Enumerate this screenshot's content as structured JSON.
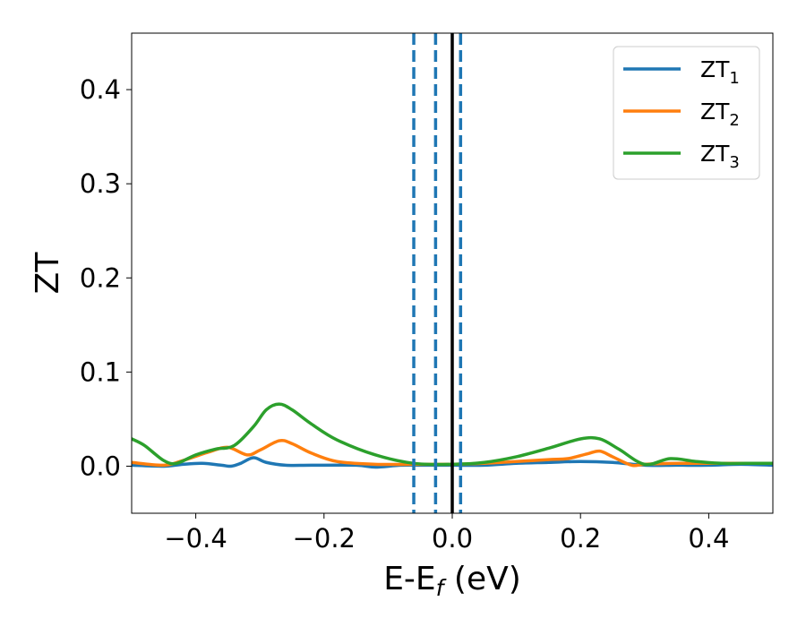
{
  "chart_data": {
    "type": "line",
    "xlabel": "E-E",
    "xlabel_sub": "f",
    "xlabel_unit": " (eV)",
    "ylabel": "ZT",
    "xlim": [
      -0.5,
      0.5
    ],
    "ylim": [
      -0.05,
      0.46
    ],
    "x_ticks": [
      -0.4,
      -0.2,
      0.0,
      0.2,
      0.4
    ],
    "x_tick_labels": [
      "−0.4",
      "−0.2",
      "0.0",
      "0.2",
      "0.4"
    ],
    "y_ticks": [
      0.0,
      0.1,
      0.2,
      0.3,
      0.4
    ],
    "y_tick_labels": [
      "0.0",
      "0.1",
      "0.2",
      "0.3",
      "0.4"
    ],
    "grid": false,
    "legend_position": "top-right",
    "vertical_lines": [
      {
        "x": -0.06,
        "style": "dashed",
        "color": "#1f77b4"
      },
      {
        "x": -0.026,
        "style": "dashed",
        "color": "#1f77b4"
      },
      {
        "x": 0.013,
        "style": "dashed",
        "color": "#1f77b4"
      },
      {
        "x": 0.0,
        "style": "solid",
        "color": "#000000"
      }
    ],
    "series": [
      {
        "name": "ZT",
        "sub": "1",
        "color": "#1f77b4",
        "x": [
          -0.5,
          -0.45,
          -0.42,
          -0.39,
          -0.36,
          -0.345,
          -0.33,
          -0.31,
          -0.29,
          -0.26,
          -0.22,
          -0.15,
          -0.12,
          -0.08,
          -0.04,
          0.0,
          0.05,
          0.1,
          0.15,
          0.2,
          0.25,
          0.3,
          0.35,
          0.4,
          0.45,
          0.5
        ],
        "values": [
          0.001,
          0.0,
          0.002,
          0.003,
          0.001,
          0.0,
          0.003,
          0.009,
          0.004,
          0.001,
          0.001,
          0.001,
          -0.001,
          0.001,
          0.001,
          0.001,
          0.001,
          0.003,
          0.004,
          0.005,
          0.004,
          0.001,
          0.001,
          0.001,
          0.002,
          0.001
        ]
      },
      {
        "name": "ZT",
        "sub": "2",
        "color": "#ff7f0e",
        "x": [
          -0.5,
          -0.45,
          -0.42,
          -0.38,
          -0.35,
          -0.32,
          -0.3,
          -0.27,
          -0.25,
          -0.22,
          -0.18,
          -0.12,
          -0.06,
          0.0,
          0.05,
          0.1,
          0.15,
          0.18,
          0.21,
          0.23,
          0.25,
          0.28,
          0.3,
          0.35,
          0.4,
          0.45,
          0.5
        ],
        "values": [
          0.004,
          0.001,
          0.006,
          0.015,
          0.02,
          0.012,
          0.017,
          0.027,
          0.024,
          0.014,
          0.005,
          0.002,
          0.002,
          0.002,
          0.003,
          0.005,
          0.007,
          0.008,
          0.013,
          0.016,
          0.01,
          0.001,
          0.002,
          0.003,
          0.003,
          0.003,
          0.003
        ]
      },
      {
        "name": "ZT",
        "sub": "3",
        "color": "#2ca02c",
        "x": [
          -0.5,
          -0.48,
          -0.45,
          -0.43,
          -0.4,
          -0.37,
          -0.34,
          -0.31,
          -0.29,
          -0.27,
          -0.25,
          -0.22,
          -0.18,
          -0.12,
          -0.06,
          0.0,
          0.05,
          0.1,
          0.15,
          0.2,
          0.23,
          0.26,
          0.3,
          0.34,
          0.38,
          0.42,
          0.46,
          0.5
        ],
        "values": [
          0.029,
          0.022,
          0.006,
          0.003,
          0.012,
          0.018,
          0.022,
          0.042,
          0.06,
          0.066,
          0.06,
          0.045,
          0.028,
          0.012,
          0.003,
          0.002,
          0.004,
          0.01,
          0.019,
          0.029,
          0.029,
          0.018,
          0.002,
          0.008,
          0.005,
          0.003,
          0.003,
          0.003
        ]
      }
    ]
  }
}
